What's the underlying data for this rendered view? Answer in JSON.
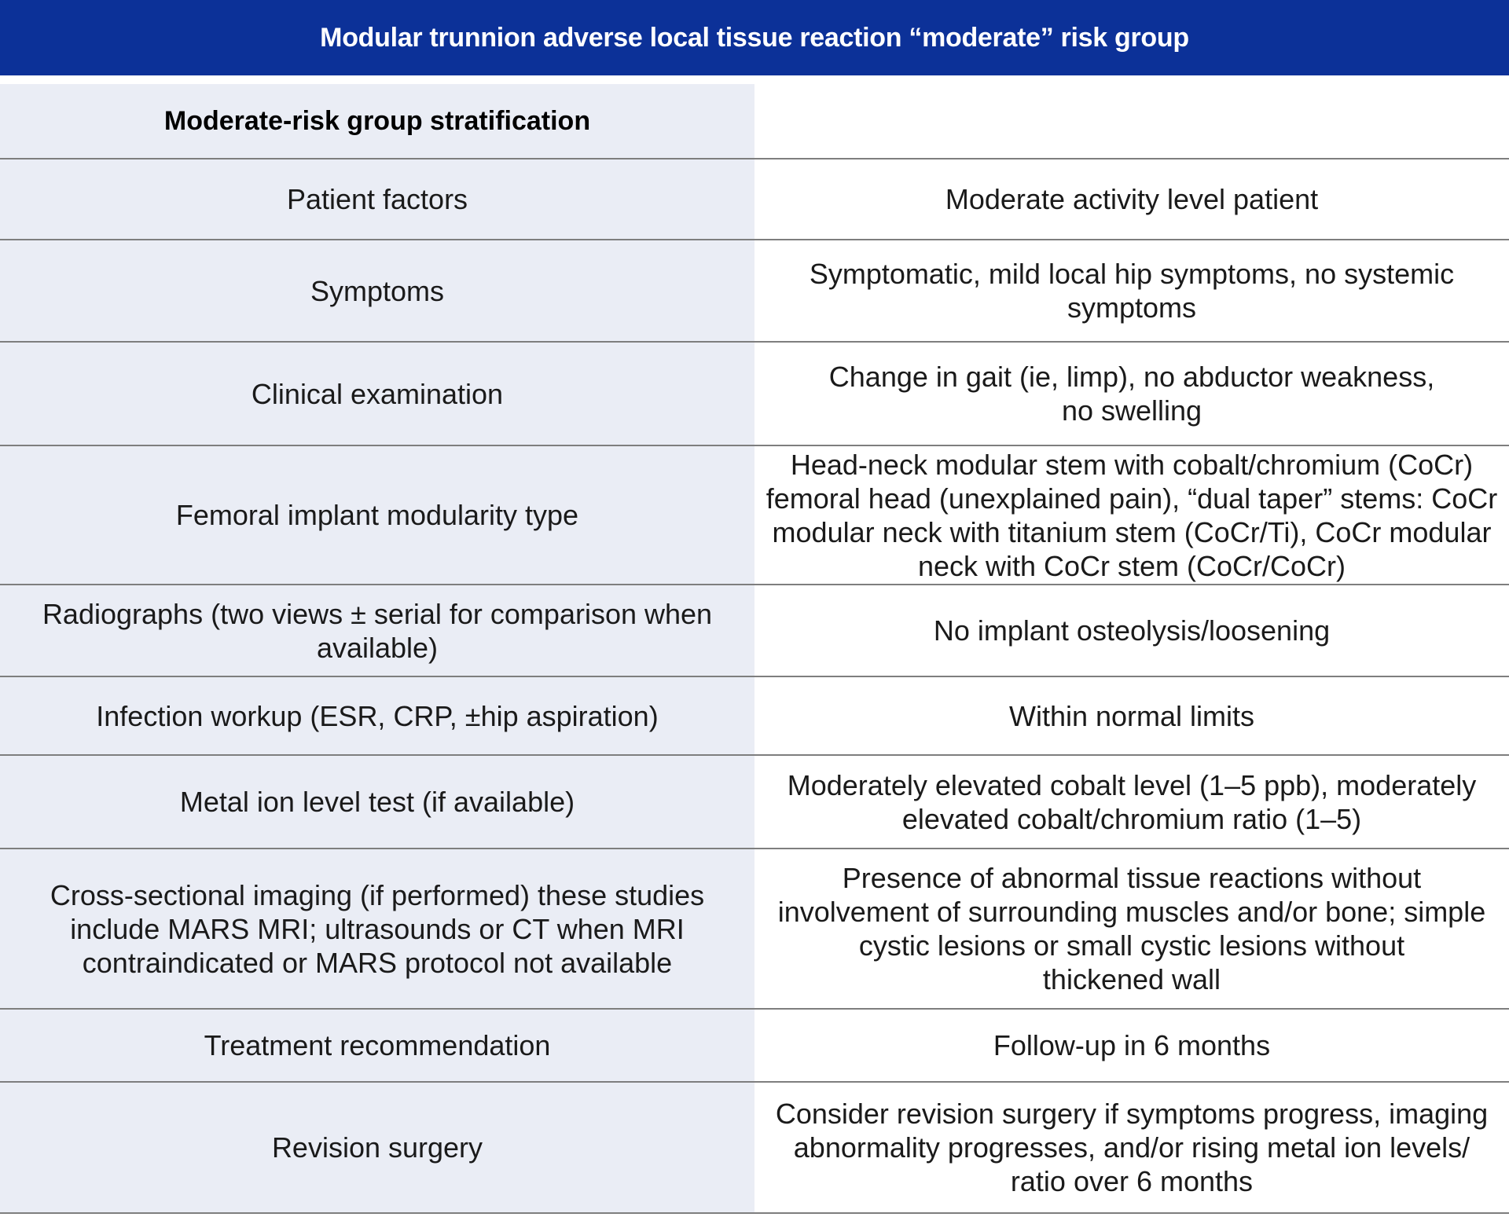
{
  "header": {
    "title": "Modular trunnion adverse local tissue reaction “moderate” risk group"
  },
  "table": {
    "section_title": "Moderate-risk group stratification",
    "rows": [
      {
        "label": "Patient factors",
        "value": "Moderate activity level patient"
      },
      {
        "label": "Symptoms",
        "value": "Symptomatic, mild local hip symptoms, no systemic\nsymptoms"
      },
      {
        "label": "Clinical examination",
        "value": "Change in gait (ie, limp), no abductor weakness,\nno swelling"
      },
      {
        "label": "Femoral implant modularity type",
        "value": "Head-neck modular stem with cobalt/chromium (CoCr)\nfemoral head (unexplained pain), “dual taper” stems: CoCr\nmodular neck with titanium stem (CoCr/Ti), CoCr modular\nneck with CoCr stem (CoCr/CoCr)"
      },
      {
        "label": "Radiographs (two views ± serial for comparison when\navailable)",
        "value": "No implant osteolysis/loosening"
      },
      {
        "label": "Infection workup (ESR, CRP, ±hip aspiration)",
        "value": "Within normal limits"
      },
      {
        "label": "Metal ion level test (if available)",
        "value": "Moderately elevated cobalt level (1–5 ppb), moderately\nelevated cobalt/chromium ratio (1–5)"
      },
      {
        "label": "Cross-sectional imaging (if performed) these studies\ninclude MARS MRI; ultrasounds or CT when MRI\ncontraindicated or MARS protocol not available",
        "value": "Presence of abnormal tissue reactions without\ninvolvement of surrounding muscles and/or bone; simple\ncystic lesions or small cystic lesions without\nthickened wall"
      },
      {
        "label": "Treatment recommendation",
        "value": "Follow-up in 6 months"
      },
      {
        "label": "Revision surgery",
        "value": "Consider revision surgery if symptoms progress, imaging\nabnormality progresses, and/or rising metal ion levels/\nratio over 6 months"
      }
    ]
  },
  "colors": {
    "header_bg": "#0c3198",
    "header_text": "#ffffff",
    "label_column_bg": "#eaedf5",
    "value_column_bg": "#ffffff",
    "divider": "#7e7e7e",
    "body_text": "#1a1a1a"
  }
}
